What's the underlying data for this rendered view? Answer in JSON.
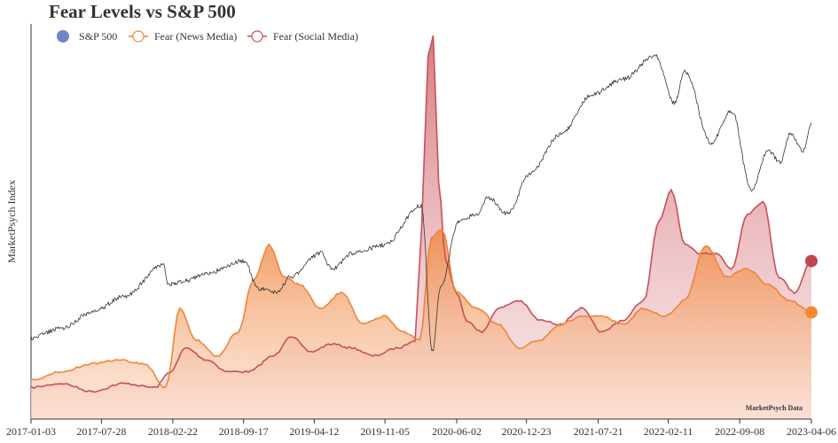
{
  "chart_data": {
    "type": "area",
    "title": "Fear Levels vs S&P 500",
    "xlabel": "",
    "ylabel": "MarketPsych Index",
    "x_ticks": [
      "2017-01-03",
      "2017-07-28",
      "2018-02-22",
      "2018-09-17",
      "2019-04-12",
      "2019-11-05",
      "2020-06-02",
      "2020-12-23",
      "2021-07-21",
      "2022-02-11",
      "2022-09-08",
      "2023-04-06"
    ],
    "x_range": [
      "2017-01-03",
      "2023-04-06"
    ],
    "ylim": [
      0,
      100
    ],
    "y_ticks_shown": false,
    "grid": false,
    "legend_position": "top-left",
    "watermark": "MarketPsych Data",
    "series": [
      {
        "name": "S&P 500",
        "kind": "line",
        "color": "#333333",
        "legend_color": "#6f86c6",
        "x": [
          "2017-01-03",
          "2017-04-01",
          "2017-07-01",
          "2017-10-01",
          "2018-01-26",
          "2018-02-09",
          "2018-04-02",
          "2018-06-01",
          "2018-09-20",
          "2018-10-29",
          "2018-12-24",
          "2019-02-01",
          "2019-05-01",
          "2019-06-03",
          "2019-08-01",
          "2019-11-01",
          "2020-02-19",
          "2020-03-23",
          "2020-04-15",
          "2020-06-08",
          "2020-08-01",
          "2020-09-02",
          "2020-10-30",
          "2021-01-01",
          "2021-04-01",
          "2021-07-01",
          "2021-10-01",
          "2022-01-03",
          "2022-03-01",
          "2022-04-01",
          "2022-06-16",
          "2022-08-16",
          "2022-10-12",
          "2022-12-01",
          "2023-01-05",
          "2023-02-02",
          "2023-03-13",
          "2023-04-06"
        ],
        "y": [
          20.5,
          23,
          27,
          31,
          39,
          34,
          35,
          37,
          40,
          33,
          32,
          36,
          42,
          38,
          42,
          44,
          54,
          17,
          33,
          50,
          52,
          56,
          52,
          62,
          72,
          82,
          86,
          92,
          80,
          88,
          70,
          78,
          58,
          68,
          65,
          72,
          68,
          75
        ]
      },
      {
        "name": "Fear (News Media)",
        "kind": "area",
        "color": "#f0843a",
        "fill": "#f7a46a",
        "x": [
          "2017-01-03",
          "2017-04-01",
          "2017-07-01",
          "2017-09-15",
          "2017-12-01",
          "2018-02-01",
          "2018-03-15",
          "2018-05-01",
          "2018-07-01",
          "2018-09-01",
          "2018-10-15",
          "2018-12-01",
          "2019-01-15",
          "2019-03-01",
          "2019-05-01",
          "2019-07-01",
          "2019-09-01",
          "2019-11-01",
          "2020-01-01",
          "2020-02-15",
          "2020-03-20",
          "2020-04-20",
          "2020-06-01",
          "2020-08-01",
          "2020-10-01",
          "2020-12-01",
          "2021-02-01",
          "2021-04-01",
          "2021-06-01",
          "2021-08-01",
          "2021-10-01",
          "2021-12-01",
          "2022-02-01",
          "2022-04-01",
          "2022-06-01",
          "2022-08-01",
          "2022-10-01",
          "2022-12-01",
          "2023-02-01",
          "2023-04-06"
        ],
        "y": [
          10,
          12,
          14,
          15,
          14,
          8,
          28,
          20,
          16,
          22,
          35,
          44,
          36,
          34,
          28,
          32,
          24,
          26,
          22,
          20,
          46,
          48,
          32,
          28,
          24,
          18,
          20,
          24,
          26,
          26,
          24,
          28,
          26,
          30,
          44,
          36,
          38,
          34,
          30,
          27
        ]
      },
      {
        "name": "Fear (Social Media)",
        "kind": "area",
        "color": "#c75056",
        "fill": "#de8c94",
        "x": [
          "2017-01-03",
          "2017-04-01",
          "2017-07-01",
          "2017-10-01",
          "2018-01-01",
          "2018-02-15",
          "2018-04-01",
          "2018-06-01",
          "2018-08-01",
          "2018-10-01",
          "2018-12-15",
          "2019-02-01",
          "2019-04-01",
          "2019-06-01",
          "2019-08-01",
          "2019-10-01",
          "2019-12-15",
          "2020-02-01",
          "2020-02-20",
          "2020-03-10",
          "2020-03-25",
          "2020-04-10",
          "2020-05-01",
          "2020-06-01",
          "2020-07-01",
          "2020-08-15",
          "2020-10-01",
          "2020-12-01",
          "2021-02-01",
          "2021-04-01",
          "2021-06-01",
          "2021-08-01",
          "2021-10-01",
          "2021-12-01",
          "2022-01-15",
          "2022-02-20",
          "2022-04-01",
          "2022-05-15",
          "2022-07-01",
          "2022-08-15",
          "2022-10-01",
          "2022-11-15",
          "2023-01-01",
          "2023-02-15",
          "2023-04-06"
        ],
        "y": [
          8,
          9,
          7,
          9,
          8,
          12,
          18,
          15,
          12,
          12,
          16,
          21,
          17,
          19,
          18,
          16,
          18,
          20,
          48,
          92,
          97,
          60,
          40,
          32,
          25,
          22,
          28,
          30,
          25,
          24,
          28,
          22,
          25,
          30,
          50,
          58,
          44,
          42,
          42,
          38,
          52,
          55,
          36,
          32,
          40
        ]
      }
    ]
  }
}
